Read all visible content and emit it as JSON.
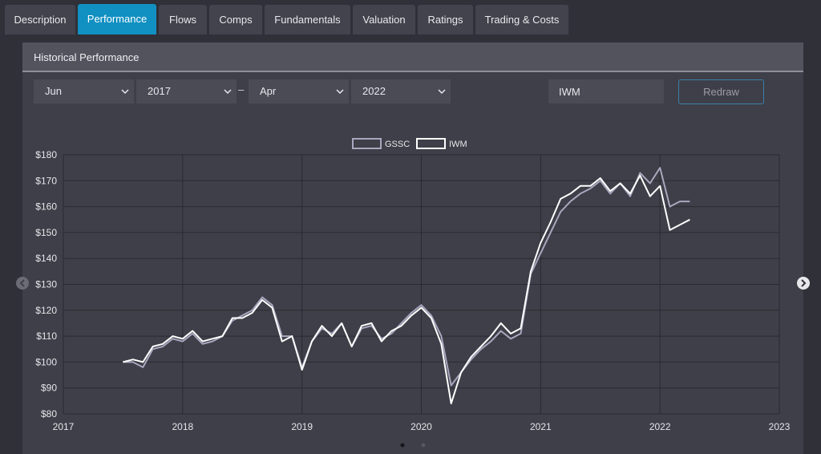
{
  "tabs": [
    {
      "label": "Description",
      "active": false
    },
    {
      "label": "Performance",
      "active": true
    },
    {
      "label": "Flows",
      "active": false
    },
    {
      "label": "Comps",
      "active": false
    },
    {
      "label": "Fundamentals",
      "active": false
    },
    {
      "label": "Valuation",
      "active": false
    },
    {
      "label": "Ratings",
      "active": false
    },
    {
      "label": "Trading & Costs",
      "active": false
    }
  ],
  "panel": {
    "title": "Historical Performance"
  },
  "controls": {
    "start_month": "Jun",
    "start_year": "2017",
    "separator": "–",
    "end_month": "Apr",
    "end_year": "2022",
    "ticker_value": "IWM",
    "redraw_label": "Redraw"
  },
  "carousel": {
    "dots": 2,
    "active_dot": 0
  },
  "colors": {
    "accent": "#1190c2",
    "gssc": "#a9a6be",
    "iwm": "#ffffff"
  },
  "chart_data": {
    "type": "line",
    "legend_position": "top-center",
    "grid": true,
    "xlim": [
      2017,
      2023
    ],
    "ylim": [
      80,
      180
    ],
    "x_ticks": [
      "2017",
      "2018",
      "2019",
      "2020",
      "2021",
      "2022",
      "2023"
    ],
    "y_ticks": [
      "$80",
      "$90",
      "$100",
      "$110",
      "$120",
      "$130",
      "$140",
      "$150",
      "$160",
      "$170",
      "$180"
    ],
    "x": [
      2017.5,
      2017.583,
      2017.667,
      2017.75,
      2017.833,
      2017.917,
      2018.0,
      2018.083,
      2018.167,
      2018.25,
      2018.333,
      2018.417,
      2018.5,
      2018.583,
      2018.667,
      2018.75,
      2018.833,
      2018.917,
      2019.0,
      2019.083,
      2019.167,
      2019.25,
      2019.333,
      2019.417,
      2019.5,
      2019.583,
      2019.667,
      2019.75,
      2019.833,
      2019.917,
      2020.0,
      2020.083,
      2020.167,
      2020.25,
      2020.333,
      2020.417,
      2020.5,
      2020.583,
      2020.667,
      2020.75,
      2020.833,
      2020.917,
      2021.0,
      2021.083,
      2021.167,
      2021.25,
      2021.333,
      2021.417,
      2021.5,
      2021.583,
      2021.667,
      2021.75,
      2021.833,
      2021.917,
      2022.0,
      2022.083,
      2022.167,
      2022.25
    ],
    "series": [
      {
        "name": "GSSC",
        "values": [
          100,
          100,
          98,
          105,
          106,
          109,
          108,
          111,
          107,
          108,
          110,
          116,
          118,
          120,
          125,
          122,
          110,
          110,
          98,
          108,
          113,
          111,
          115,
          106,
          113,
          114,
          109,
          111,
          115,
          119,
          122,
          118,
          110,
          91,
          96,
          101,
          105,
          108,
          112,
          109,
          111,
          134,
          142,
          150,
          158,
          162,
          165,
          167,
          170,
          165,
          169,
          164,
          173,
          169,
          175,
          160,
          162,
          162
        ]
      },
      {
        "name": "IWM",
        "values": [
          100,
          101,
          100,
          106,
          107,
          110,
          109,
          112,
          108,
          109,
          110,
          117,
          117,
          119,
          124,
          121,
          108,
          110,
          97,
          108,
          114,
          110,
          115,
          106,
          114,
          115,
          108,
          112,
          114,
          118,
          121,
          117,
          107,
          84,
          96,
          102,
          106,
          110,
          115,
          111,
          113,
          135,
          146,
          154,
          163,
          165,
          168,
          168,
          171,
          166,
          169,
          165,
          172,
          164,
          168,
          151,
          153,
          155
        ]
      }
    ]
  }
}
